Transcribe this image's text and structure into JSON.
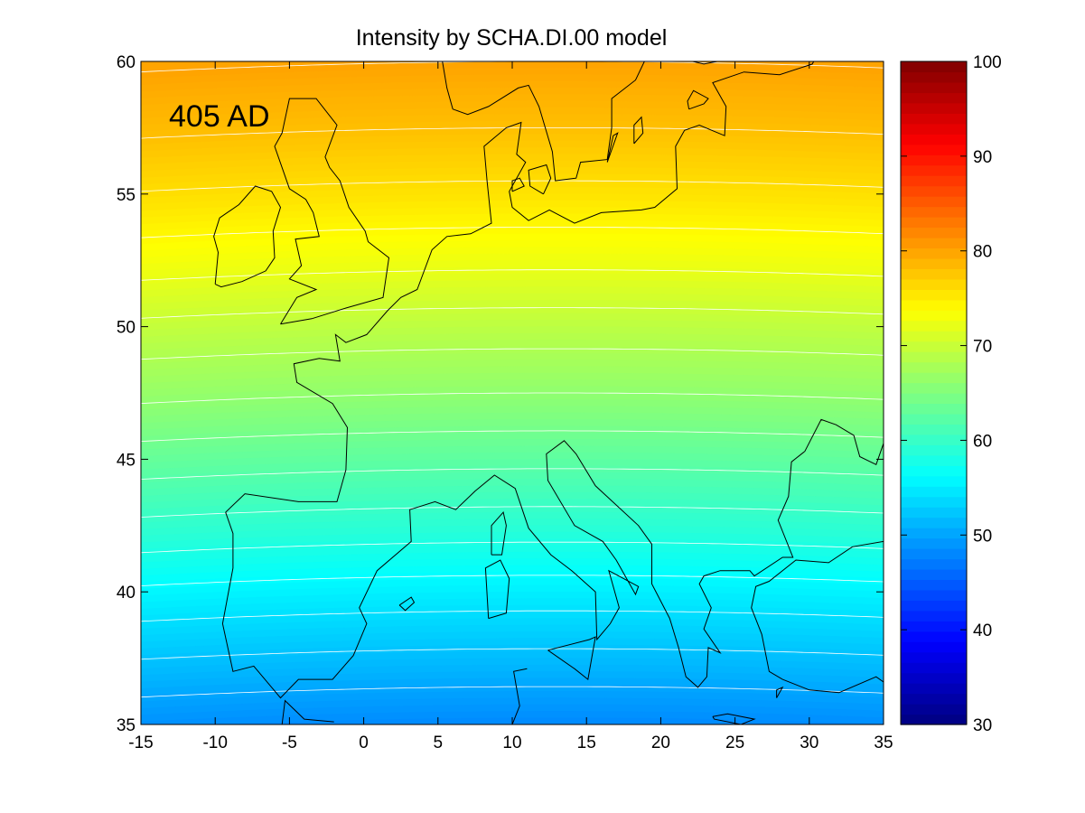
{
  "title": "Intensity by SCHA.DI.00 model",
  "epoch_label": "405 AD",
  "map": {
    "x_ticks": [
      "-15",
      "-10",
      "-5",
      "0",
      "5",
      "10",
      "15",
      "20",
      "25",
      "30",
      "35"
    ],
    "y_ticks": [
      "35",
      "40",
      "45",
      "50",
      "55",
      "60"
    ],
    "xlim": [
      -15,
      35
    ],
    "ylim": [
      35,
      60
    ],
    "contour_color": "#ffffff",
    "coastline_color": "#000000"
  },
  "colorbar": {
    "ticks": [
      "30",
      "40",
      "50",
      "60",
      "70",
      "80",
      "90",
      "100"
    ],
    "range": [
      30,
      100
    ],
    "colormap": "jet"
  },
  "chart_data": {
    "type": "heatmap",
    "title": "Intensity by SCHA.DI.00 model",
    "annotation": "405 AD",
    "xlim": [
      -15,
      35
    ],
    "ylim": [
      35,
      60
    ],
    "color_range": [
      30,
      100
    ],
    "intensity_by_latitude": [
      {
        "lat": 35,
        "value": 48
      },
      {
        "lat": 37.5,
        "value": 51.5
      },
      {
        "lat": 40,
        "value": 55
      },
      {
        "lat": 42.5,
        "value": 59
      },
      {
        "lat": 45,
        "value": 62.5
      },
      {
        "lat": 47.5,
        "value": 66
      },
      {
        "lat": 50,
        "value": 69
      },
      {
        "lat": 52.5,
        "value": 72.5
      },
      {
        "lat": 55,
        "value": 75.5
      },
      {
        "lat": 57.5,
        "value": 78
      },
      {
        "lat": 60,
        "value": 80
      }
    ],
    "contour_levels": [
      50,
      52,
      54,
      56,
      58,
      60,
      62,
      64,
      66,
      68,
      70,
      72,
      74,
      76,
      78,
      80
    ]
  }
}
